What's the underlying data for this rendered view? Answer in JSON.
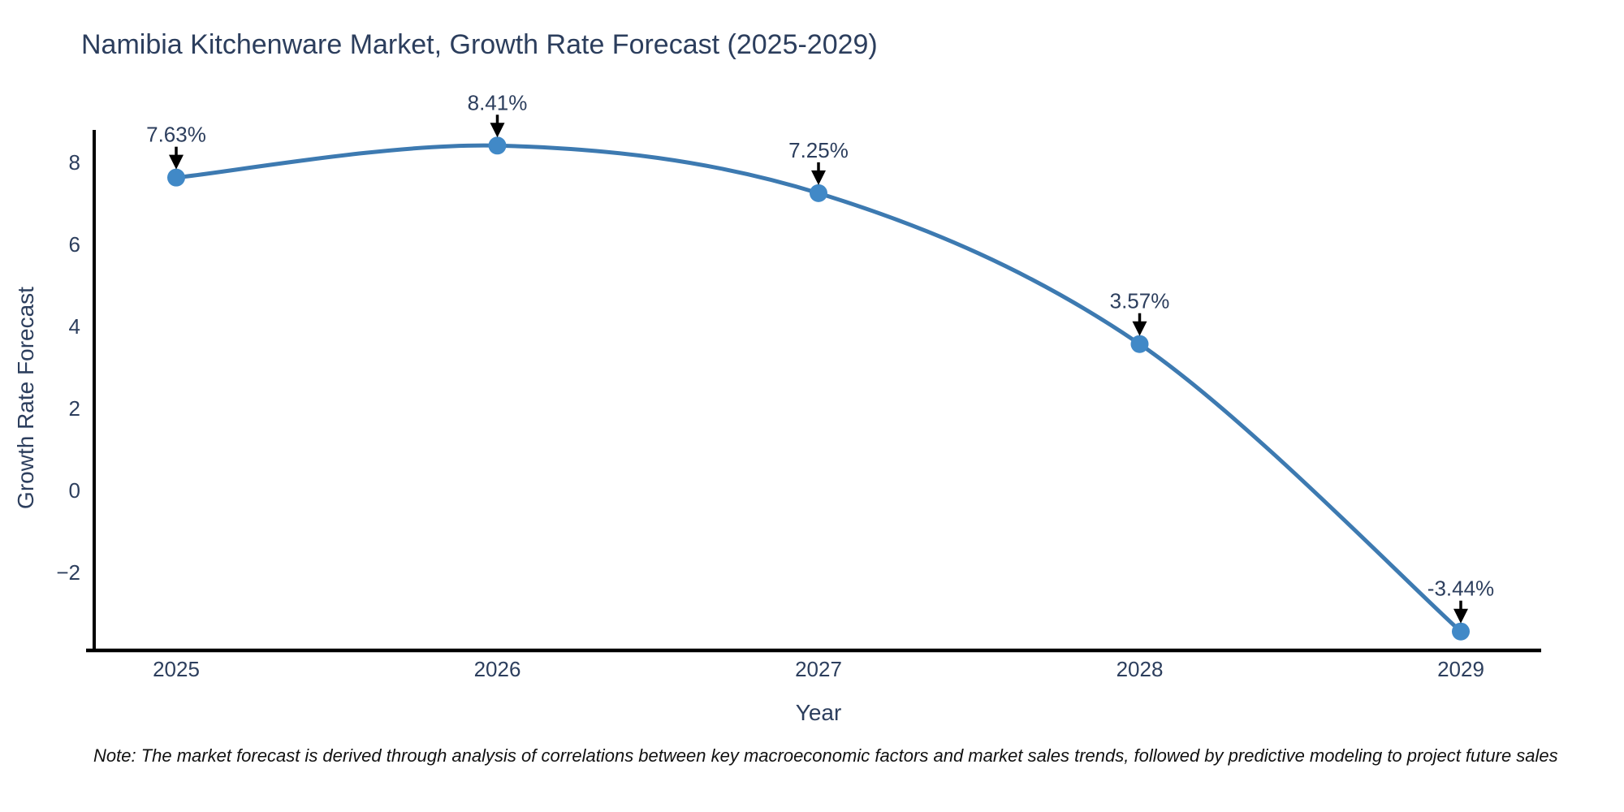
{
  "figure": {
    "title": "Namibia Kitchenware Market, Growth Rate Forecast (2025-2029)",
    "x_axis_label": "Year",
    "y_axis_label": "Growth Rate Forecast",
    "footnote": "Note: The market forecast is derived through analysis of correlations between key macroeconomic factors and market sales trends, followed by predictive modeling to project future sales"
  },
  "chart_data": {
    "type": "line",
    "title": "Namibia Kitchenware Market, Growth Rate Forecast (2025-2029)",
    "xlabel": "Year",
    "ylabel": "Growth Rate Forecast",
    "line_shape": "spline",
    "grid": false,
    "legend_position": "none",
    "x": [
      2025,
      2026,
      2027,
      2028,
      2029
    ],
    "series": [
      {
        "name": "Growth Rate Forecast",
        "values": [
          7.63,
          8.41,
          7.25,
          3.57,
          -3.44
        ]
      }
    ],
    "point_labels": [
      "7.63%",
      "8.41%",
      "7.25%",
      "3.57%",
      "-3.44%"
    ],
    "x_tick_labels": [
      "2025",
      "2026",
      "2027",
      "2028",
      "2029"
    ],
    "y_ticks": [
      {
        "value": 8,
        "label": "8"
      },
      {
        "value": 6,
        "label": "6"
      },
      {
        "value": 4,
        "label": "4"
      },
      {
        "value": 2,
        "label": "2"
      },
      {
        "value": 0,
        "label": "0"
      },
      {
        "value": -2,
        "label": "−2"
      }
    ],
    "xlim": [
      2024.74,
      2029.25
    ],
    "ylim": [
      -3.9,
      8.8
    ],
    "colors": {
      "line": "#3d7ab1",
      "marker": "#4189c7",
      "axis": "#000000",
      "text": "#2c3e5d",
      "annotation_arrow": "#000000",
      "footnote_text": "#111111",
      "background": "#ffffff"
    }
  }
}
